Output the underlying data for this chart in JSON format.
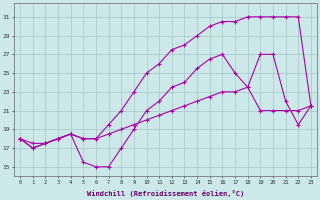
{
  "xlabel": "Windchill (Refroidissement éolien,°C)",
  "background_color": "#cce8e8",
  "grid_color": "#aacccc",
  "line_color": "#aa00aa",
  "x_values": [
    0,
    1,
    2,
    3,
    4,
    5,
    6,
    7,
    8,
    9,
    10,
    11,
    12,
    13,
    14,
    15,
    16,
    17,
    18,
    19,
    20,
    21,
    22,
    23
  ],
  "line1_y": [
    18,
    17,
    17.5,
    18,
    18.5,
    18,
    18,
    19.5,
    21,
    23,
    25,
    26,
    27.5,
    28,
    29,
    30,
    30.5,
    30.5,
    31,
    31,
    31,
    31,
    31,
    21.5
  ],
  "line2_y": [
    18,
    17,
    17.5,
    18,
    18.5,
    15.5,
    15,
    15,
    17,
    19,
    21,
    22,
    23.5,
    24,
    25.5,
    26.5,
    27,
    25,
    23.5,
    27,
    27,
    22,
    19.5,
    21.5
  ],
  "line3_y": [
    18,
    17.5,
    17.5,
    18,
    18.5,
    18,
    18,
    18.5,
    19,
    19.5,
    20,
    20.5,
    21,
    21.5,
    22,
    22.5,
    23,
    23,
    23.5,
    21,
    21,
    21,
    21,
    21.5
  ],
  "xlim_min": -0.5,
  "xlim_max": 23.5,
  "ylim_min": 14,
  "ylim_max": 32.5,
  "yticks": [
    15,
    17,
    19,
    21,
    23,
    25,
    27,
    29,
    31
  ],
  "xticks": [
    0,
    1,
    2,
    3,
    4,
    5,
    6,
    7,
    8,
    9,
    10,
    11,
    12,
    13,
    14,
    15,
    16,
    17,
    18,
    19,
    20,
    21,
    22,
    23
  ]
}
